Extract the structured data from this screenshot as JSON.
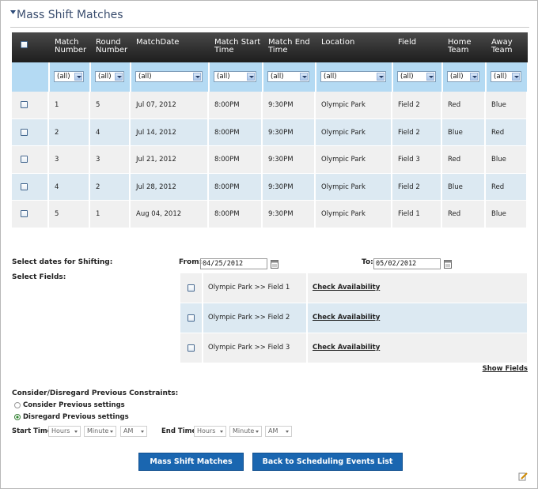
{
  "title": "Mass Shift Matches",
  "table": {
    "headers": [
      "Match Number",
      "Round Number",
      "MatchDate",
      "Match Start Time",
      "Match End Time",
      "Location",
      "Field",
      "Home Team",
      "Away Team"
    ],
    "filters": [
      "(all)",
      "(all)",
      "(all)",
      "(all)",
      "(all)",
      "(all)",
      "(all)",
      "(all)",
      "(all)"
    ],
    "rows": [
      [
        "1",
        "5",
        "Jul 07, 2012",
        "8:00PM",
        "9:30PM",
        "Olympic Park",
        "Field 2",
        "Red",
        "Blue"
      ],
      [
        "2",
        "4",
        "Jul 14, 2012",
        "8:00PM",
        "9:30PM",
        "Olympic Park",
        "Field 2",
        "Blue",
        "Red"
      ],
      [
        "3",
        "3",
        "Jul 21, 2012",
        "8:00PM",
        "9:30PM",
        "Olympic Park",
        "Field 3",
        "Red",
        "Blue"
      ],
      [
        "4",
        "2",
        "Jul 28, 2012",
        "8:00PM",
        "9:30PM",
        "Olympic Park",
        "Field 2",
        "Blue",
        "Red"
      ],
      [
        "5",
        "1",
        "Aug 04, 2012",
        "8:00PM",
        "9:30PM",
        "Olympic Park",
        "Field 1",
        "Red",
        "Blue"
      ]
    ]
  },
  "dates": {
    "label": "Select dates for Shifting:",
    "from_label": "From:",
    "from_value": "04/25/2012",
    "to_label": "To:",
    "to_value": "05/02/2012"
  },
  "fields_label": "Select Fields:",
  "fields": [
    {
      "name": "Olympic Park >> Field 1",
      "action": "Check Availability"
    },
    {
      "name": "Olympic Park >> Field 2",
      "action": "Check Availability"
    },
    {
      "name": "Olympic Park >> Field 3",
      "action": "Check Availability"
    }
  ],
  "show_fields": "Show Fields",
  "constraints": {
    "label": "Consider/Disregard Previous Constraints:",
    "options": [
      "Consider Previous settings",
      "Disregard Previous settings"
    ]
  },
  "start_time": {
    "label": "Start Time:",
    "hours": "Hours",
    "minutes": "Minute",
    "ampm": "AM"
  },
  "end_time": {
    "label": "End Time:",
    "hours": "Hours",
    "minutes": "Minute",
    "ampm": "AM"
  },
  "buttons": [
    "Mass Shift Matches",
    "Back to Scheduling Events List"
  ]
}
